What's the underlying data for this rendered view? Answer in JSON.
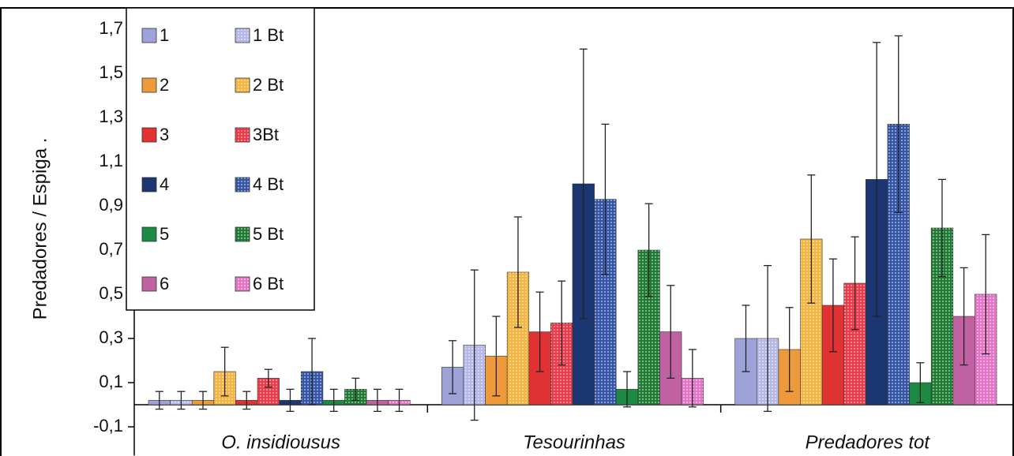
{
  "chart_data": {
    "type": "bar",
    "y_label": "Predadores / Espiga .",
    "categories": [
      "O. insidiousus",
      "Tesourinhas",
      "Predadores tot"
    ],
    "ylim": [
      -0.23,
      1.8
    ],
    "yticks": [
      {
        "value": -0.1,
        "label": "-0,1"
      },
      {
        "value": 0.1,
        "label": "0,1"
      },
      {
        "value": 0.3,
        "label": "0,3"
      },
      {
        "value": 0.5,
        "label": "0,5"
      },
      {
        "value": 0.7,
        "label": "0,7"
      },
      {
        "value": 0.9,
        "label": "0,9"
      },
      {
        "value": 1.1,
        "label": "1,1"
      },
      {
        "value": 1.3,
        "label": "1,3"
      },
      {
        "value": 1.5,
        "label": "1,5"
      },
      {
        "value": 1.7,
        "label": "1,7"
      }
    ],
    "grid": false,
    "legend": "top-left",
    "series": [
      {
        "name": "1",
        "color": "#9ea2d6",
        "dotted": false,
        "values": [
          0.02,
          0.17,
          0.3
        ],
        "errors": [
          0.04,
          0.12,
          0.15
        ]
      },
      {
        "name": "1 Bt",
        "color": "#b6b8e8",
        "dotted": true,
        "values": [
          0.02,
          0.27,
          0.3
        ],
        "errors": [
          0.04,
          0.34,
          0.33
        ]
      },
      {
        "name": "2",
        "color": "#ee9a3a",
        "dotted": false,
        "values": [
          0.02,
          0.22,
          0.25
        ],
        "errors": [
          0.04,
          0.18,
          0.19
        ]
      },
      {
        "name": "2 Bt",
        "color": "#f6b440",
        "dotted": true,
        "values": [
          0.15,
          0.6,
          0.75
        ],
        "errors": [
          0.11,
          0.25,
          0.29
        ]
      },
      {
        "name": "3",
        "color": "#e03232",
        "dotted": false,
        "values": [
          0.02,
          0.33,
          0.45
        ],
        "errors": [
          0.04,
          0.18,
          0.21
        ]
      },
      {
        "name": "3Bt",
        "color": "#f03a48",
        "dotted": true,
        "values": [
          0.12,
          0.37,
          0.55
        ],
        "errors": [
          0.04,
          0.19,
          0.21
        ]
      },
      {
        "name": "4",
        "color": "#1c3672",
        "dotted": false,
        "values": [
          0.02,
          1.0,
          1.02
        ],
        "errors": [
          0.05,
          0.61,
          0.62
        ]
      },
      {
        "name": "4 Bt",
        "color": "#3556a6",
        "dotted": true,
        "values": [
          0.15,
          0.93,
          1.27
        ],
        "errors": [
          0.15,
          0.34,
          0.4
        ]
      },
      {
        "name": "5",
        "color": "#1c8a42",
        "dotted": false,
        "values": [
          0.02,
          0.07,
          0.1
        ],
        "errors": [
          0.05,
          0.08,
          0.09
        ]
      },
      {
        "name": "5 Bt",
        "color": "#1f7a34",
        "dotted": true,
        "values": [
          0.07,
          0.7,
          0.8
        ],
        "errors": [
          0.05,
          0.21,
          0.22
        ]
      },
      {
        "name": "6",
        "color": "#c062a2",
        "dotted": false,
        "values": [
          0.02,
          0.33,
          0.4
        ],
        "errors": [
          0.05,
          0.21,
          0.22
        ]
      },
      {
        "name": "6 Bt",
        "color": "#e474c6",
        "dotted": true,
        "values": [
          0.02,
          0.12,
          0.5
        ],
        "errors": [
          0.05,
          0.13,
          0.27
        ]
      }
    ]
  }
}
